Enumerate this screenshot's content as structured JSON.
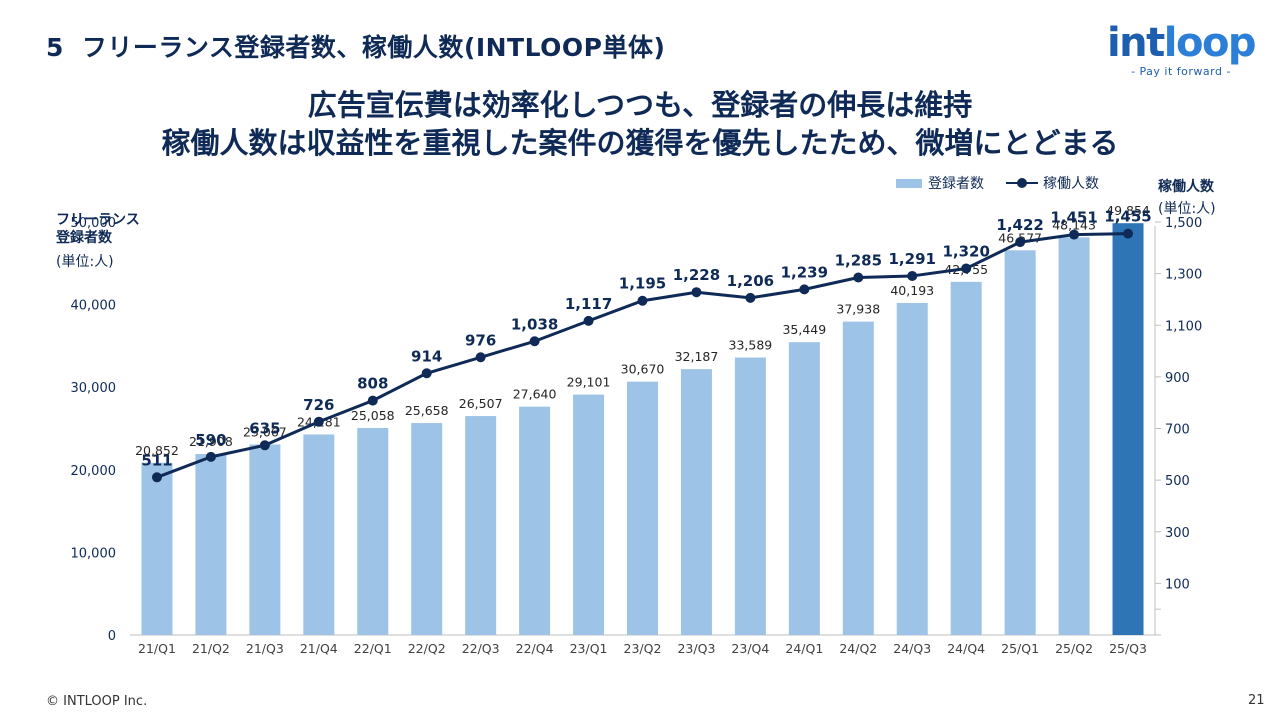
{
  "slide": {
    "number": "5",
    "title": "フリーランス登録者数、稼働人数(INTLOOP単体)",
    "headline_line1": "広告宣伝費は効率化しつつも、登録者の伸長は維持",
    "headline_line2": "稼働人数は収益性を重視した案件の獲得を優先したため、微増にとどまる"
  },
  "logo": {
    "word_a": "int",
    "word_b": "loop",
    "tagline": "- Pay it forward -"
  },
  "footer": {
    "copyright": "© INTLOOP Inc.",
    "page": "21"
  },
  "colors": {
    "bar": "#9dc3e6",
    "bar_highlight": "#2e75b6",
    "line": "#0f2a56",
    "text": "#0f2a56"
  },
  "chart_data": {
    "type": "bar+line",
    "categories": [
      "21/Q1",
      "21/Q2",
      "21/Q3",
      "21/Q4",
      "22/Q1",
      "22/Q2",
      "22/Q3",
      "22/Q4",
      "23/Q1",
      "23/Q2",
      "23/Q3",
      "23/Q4",
      "24/Q1",
      "24/Q2",
      "24/Q3",
      "24/Q4",
      "25/Q1",
      "25/Q2",
      "25/Q3"
    ],
    "series": [
      {
        "name": "登録者数",
        "type": "bar",
        "axis": "left",
        "values": [
          20852,
          21908,
          23067,
          24281,
          25058,
          25658,
          26507,
          27640,
          29101,
          30670,
          32187,
          33589,
          35449,
          37938,
          40193,
          42755,
          46577,
          48143,
          49854
        ],
        "labels": [
          "20,852",
          "21,908",
          "23,067",
          "24,281",
          "25,058",
          "25,658",
          "26,507",
          "27,640",
          "29,101",
          "30,670",
          "32,187",
          "33,589",
          "35,449",
          "37,938",
          "40,193",
          "42,755",
          "46,577",
          "48,143",
          "49,854"
        ],
        "highlight_index": 18
      },
      {
        "name": "稼働人数",
        "type": "line",
        "axis": "right",
        "values": [
          511,
          590,
          635,
          726,
          808,
          914,
          976,
          1038,
          1117,
          1195,
          1228,
          1206,
          1239,
          1285,
          1291,
          1320,
          1422,
          1451,
          1455
        ],
        "labels": [
          "511",
          "590",
          "635",
          "726",
          "808",
          "914",
          "976",
          "1,038",
          "1,117",
          "1,195",
          "1,228",
          "1,206",
          "1,239",
          "1,285",
          "1,291",
          "1,320",
          "1,422",
          "1,451",
          "1,455"
        ]
      }
    ],
    "left_axis": {
      "title_line1": "フリーランス",
      "title_line2": "登録者数",
      "unit": "(単位:人)",
      "min": 0,
      "max": 50000,
      "ticks": [
        0,
        10000,
        20000,
        30000,
        40000,
        50000
      ],
      "tick_labels": [
        "0",
        "10,000",
        "20,000",
        "30,000",
        "40,000",
        "50,000"
      ]
    },
    "right_axis": {
      "title": "稼働人数",
      "unit": "(単位:人)",
      "min": -100,
      "max": 1500,
      "ticks": [
        100,
        300,
        500,
        700,
        900,
        1100,
        1300,
        1500
      ],
      "tick_labels": [
        "100",
        "300",
        "500",
        "700",
        "900",
        "1,100",
        "1,300",
        "1,500"
      ]
    },
    "legend": {
      "position": "top-right",
      "bar_label": "登録者数",
      "line_label": "稼働人数"
    },
    "grid": false
  }
}
